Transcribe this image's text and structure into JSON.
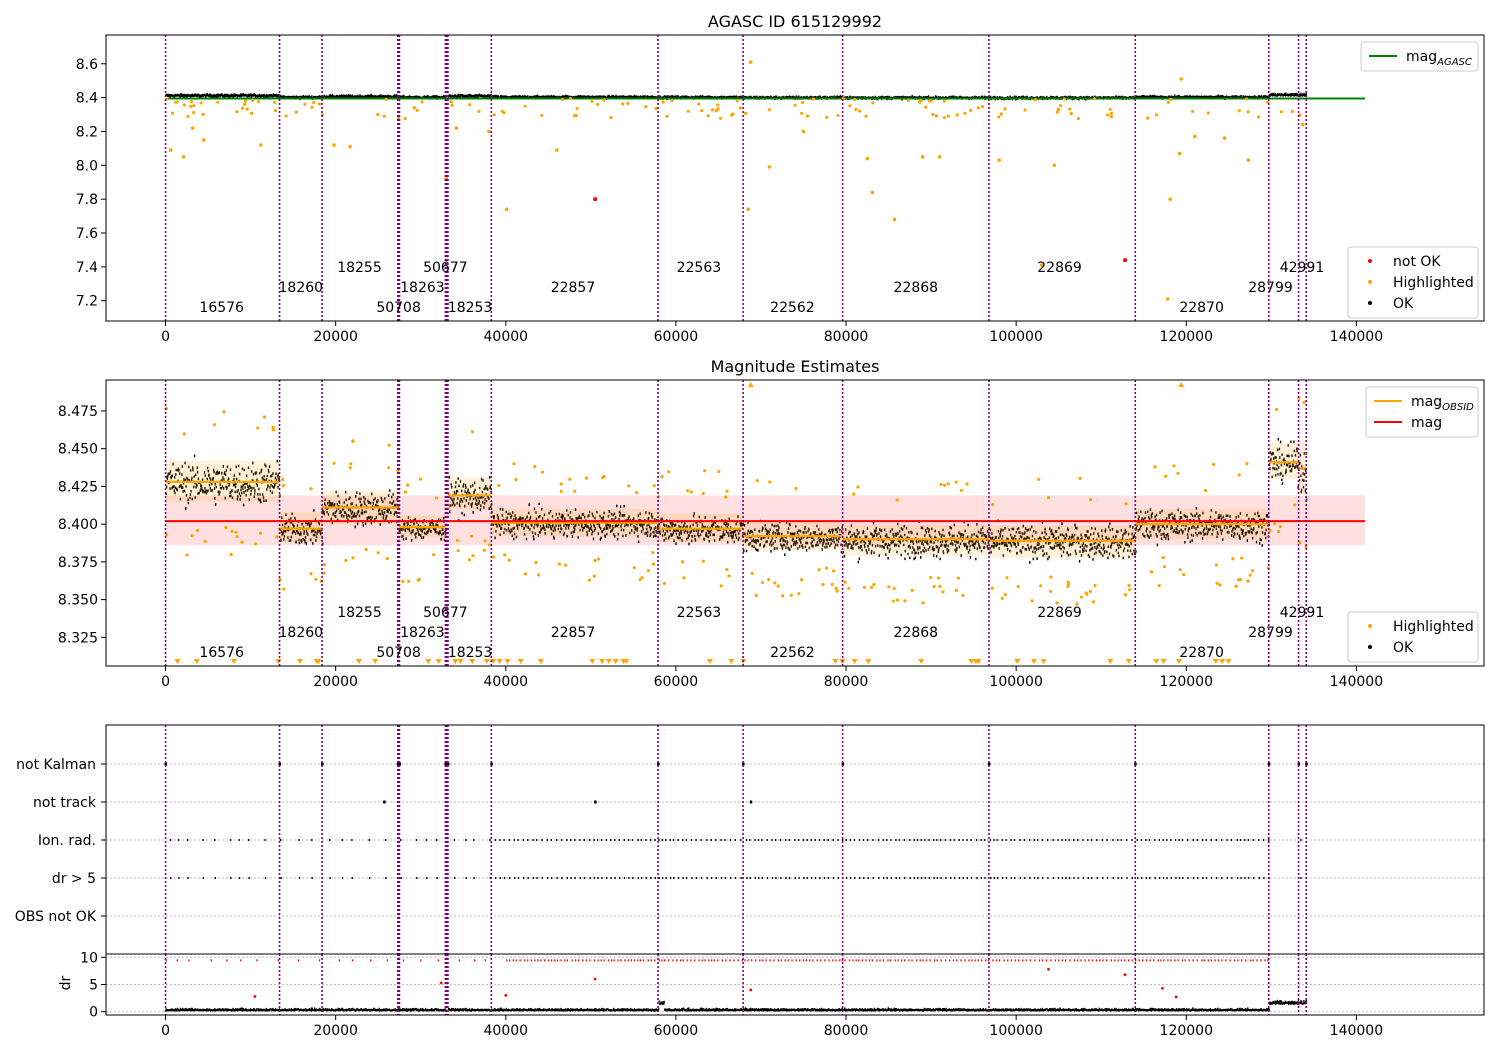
{
  "x_ticks": [
    0,
    20000,
    40000,
    60000,
    80000,
    100000,
    120000,
    140000
  ],
  "x_range": [
    -7000,
    155000
  ],
  "obs_boundaries": [
    0,
    13400,
    18400,
    27300,
    27400,
    27500,
    32900,
    33000,
    33100,
    33200,
    38300,
    57900,
    67900,
    79600,
    96800,
    114000,
    129700,
    133200,
    134100
  ],
  "obs_labels": [
    {
      "text": "16576",
      "x": 6600,
      "row": 2
    },
    {
      "text": "18260",
      "x": 15900,
      "row": 1
    },
    {
      "text": "18255",
      "x": 22800,
      "row": 0
    },
    {
      "text": "50708",
      "x": 27400,
      "row": 2
    },
    {
      "text": "18263",
      "x": 30200,
      "row": 1
    },
    {
      "text": "50677",
      "x": 32900,
      "row": 0
    },
    {
      "text": "18253",
      "x": 35800,
      "row": 2
    },
    {
      "text": "22857",
      "x": 47900,
      "row": 1
    },
    {
      "text": "22563",
      "x": 62700,
      "row": 0
    },
    {
      "text": "22562",
      "x": 73700,
      "row": 2
    },
    {
      "text": "22868",
      "x": 88200,
      "row": 1
    },
    {
      "text": "22869",
      "x": 105100,
      "row": 0
    },
    {
      "text": "22870",
      "x": 121800,
      "row": 2
    },
    {
      "text": "28799",
      "x": 129900,
      "row": 1
    },
    {
      "text": "42991",
      "x": 133600,
      "row": 0
    }
  ],
  "panel1": {
    "title": "AGASC ID 615129992",
    "y_ticks": [
      "7.2",
      "7.4",
      "7.6",
      "7.8",
      "8.0",
      "8.2",
      "8.4",
      "8.6"
    ],
    "y_tick_values": [
      7.2,
      7.4,
      7.6,
      7.8,
      8.0,
      8.2,
      8.4,
      8.6
    ],
    "y_range": [
      7.08,
      8.77
    ],
    "legend_top": [
      {
        "label": "mag",
        "sub": "AGASC",
        "color": "#008000"
      }
    ],
    "legend_bottom": [
      {
        "label": "not OK",
        "color": "#ff0000"
      },
      {
        "label": "Highlighted",
        "color": "#ffa500"
      },
      {
        "label": "OK",
        "color": "#000000"
      }
    ]
  },
  "panel2": {
    "title": "Magnitude Estimates",
    "y_ticks": [
      "8.325",
      "8.350",
      "8.375",
      "8.400",
      "8.425",
      "8.450",
      "8.475"
    ],
    "y_tick_values": [
      8.325,
      8.35,
      8.375,
      8.4,
      8.425,
      8.45,
      8.475
    ],
    "y_range": [
      8.306,
      8.4955
    ],
    "legend_top": [
      {
        "label": "mag",
        "sub": "OBSID",
        "color": "#ffa500"
      },
      {
        "label": "mag",
        "sub": "",
        "color": "#ff0000"
      }
    ],
    "legend_bottom": [
      {
        "label": "Highlighted",
        "color": "#ffa500"
      },
      {
        "label": "OK",
        "color": "#000000"
      }
    ]
  },
  "panel3": {
    "categories": [
      "not Kalman",
      "not track",
      "Ion. rad.",
      "dr > 5",
      "OBS not OK"
    ]
  },
  "panel4": {
    "y_ticks": [
      "0",
      "5",
      "10"
    ],
    "y_tick_values": [
      0,
      5,
      10
    ],
    "y_range": [
      -0.6,
      10.6
    ],
    "ylabel": "dr"
  },
  "chart_data": {
    "type": "scatter",
    "title": "AGASC ID 615129992",
    "subtitle": "Magnitude Estimates",
    "x_range": [
      -7000,
      155000
    ],
    "mag_agasc": 8.395,
    "mag_mean": 8.402,
    "mag_band": [
      8.386,
      8.419
    ],
    "obsid_segments": [
      {
        "x0": 0,
        "x1": 13400,
        "mag": 8.428,
        "band": [
          8.415,
          8.442
        ]
      },
      {
        "x0": 13400,
        "x1": 18400,
        "mag": 8.397,
        "band": [
          8.388,
          8.408
        ]
      },
      {
        "x0": 18400,
        "x1": 27400,
        "mag": 8.411,
        "band": [
          8.4,
          8.422
        ]
      },
      {
        "x0": 27400,
        "x1": 32900,
        "mag": 8.398,
        "band": [
          8.391,
          8.406
        ]
      },
      {
        "x0": 33200,
        "x1": 38300,
        "mag": 8.419,
        "band": [
          8.41,
          8.431
        ]
      },
      {
        "x0": 38300,
        "x1": 57900,
        "mag": 8.401,
        "band": [
          8.392,
          8.41
        ]
      },
      {
        "x0": 57900,
        "x1": 67900,
        "mag": 8.397,
        "band": [
          8.388,
          8.407
        ]
      },
      {
        "x0": 67900,
        "x1": 79600,
        "mag": 8.392,
        "band": [
          8.383,
          8.401
        ]
      },
      {
        "x0": 79600,
        "x1": 96800,
        "mag": 8.39,
        "band": [
          8.379,
          8.4
        ]
      },
      {
        "x0": 96800,
        "x1": 114000,
        "mag": 8.389,
        "band": [
          8.378,
          8.399
        ]
      },
      {
        "x0": 114000,
        "x1": 129700,
        "mag": 8.4,
        "band": [
          8.39,
          8.41
        ]
      },
      {
        "x0": 129700,
        "x1": 133200,
        "mag": 8.441,
        "band": [
          8.43,
          8.454
        ]
      },
      {
        "x0": 133200,
        "x1": 134100,
        "mag": 8.437,
        "band": [
          8.42,
          8.455
        ]
      }
    ],
    "not_ok_points": [
      {
        "x": 50500,
        "y": 7.8
      },
      {
        "x": 112800,
        "y": 7.44
      }
    ],
    "highlighted_samples": [
      {
        "x": 600,
        "y": 8.09
      },
      {
        "x": 2100,
        "y": 8.05
      },
      {
        "x": 3200,
        "y": 8.22
      },
      {
        "x": 4500,
        "y": 8.15
      },
      {
        "x": 11200,
        "y": 8.12
      },
      {
        "x": 19800,
        "y": 8.12
      },
      {
        "x": 21700,
        "y": 8.11
      },
      {
        "x": 33000,
        "y": 7.92
      },
      {
        "x": 34200,
        "y": 8.22
      },
      {
        "x": 38000,
        "y": 8.2
      },
      {
        "x": 40100,
        "y": 7.74
      },
      {
        "x": 46000,
        "y": 8.09
      },
      {
        "x": 68500,
        "y": 7.74
      },
      {
        "x": 68800,
        "y": 8.61
      },
      {
        "x": 71000,
        "y": 7.99
      },
      {
        "x": 75000,
        "y": 8.2
      },
      {
        "x": 82500,
        "y": 8.04
      },
      {
        "x": 83100,
        "y": 7.84
      },
      {
        "x": 85700,
        "y": 7.68
      },
      {
        "x": 89000,
        "y": 8.05
      },
      {
        "x": 91000,
        "y": 8.05
      },
      {
        "x": 98000,
        "y": 8.03
      },
      {
        "x": 103000,
        "y": 7.41
      },
      {
        "x": 104500,
        "y": 8.0
      },
      {
        "x": 117800,
        "y": 7.21
      },
      {
        "x": 118100,
        "y": 7.8
      },
      {
        "x": 119400,
        "y": 8.51
      },
      {
        "x": 119200,
        "y": 8.07
      },
      {
        "x": 121000,
        "y": 8.17
      },
      {
        "x": 124500,
        "y": 8.16
      },
      {
        "x": 127300,
        "y": 8.03
      },
      {
        "x": 133700,
        "y": 8.24
      }
    ],
    "flag_rows": [
      "not Kalman",
      "not track",
      "Ion. rad.",
      "dr > 5",
      "OBS not OK"
    ],
    "not_track_points": [
      25700,
      50500,
      68800
    ],
    "dr_outliers": [
      {
        "x": 50500,
        "y": 6.0
      },
      {
        "x": 68800,
        "y": 4.0
      },
      {
        "x": 103800,
        "y": 7.8
      },
      {
        "x": 112800,
        "y": 6.8
      },
      {
        "x": 32400,
        "y": 5.3
      },
      {
        "x": 117200,
        "y": 4.3
      },
      {
        "x": 118800,
        "y": 2.7
      },
      {
        "x": 10500,
        "y": 2.8
      },
      {
        "x": 40000,
        "y": 3.0
      }
    ]
  }
}
